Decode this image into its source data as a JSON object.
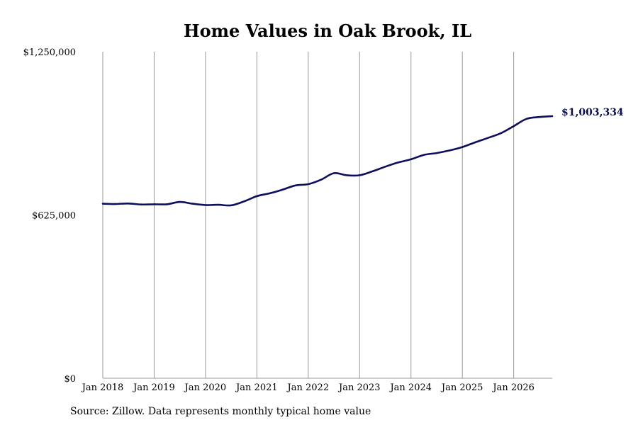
{
  "chart_data": {
    "type": "line",
    "title": "Home Values in Oak Brook, IL",
    "xlabel": "",
    "ylabel": "",
    "ylim": [
      0,
      1250000
    ],
    "xlim": [
      "2018-01",
      "2026-10"
    ],
    "y_ticks": [
      {
        "value": 0,
        "label": "$0"
      },
      {
        "value": 625000,
        "label": "$625,000"
      },
      {
        "value": 1250000,
        "label": "$1,250,000"
      }
    ],
    "x_ticks": [
      {
        "value": "2018-01",
        "label": "Jan 2018"
      },
      {
        "value": "2019-01",
        "label": "Jan 2019"
      },
      {
        "value": "2020-01",
        "label": "Jan 2020"
      },
      {
        "value": "2021-01",
        "label": "Jan 2021"
      },
      {
        "value": "2022-01",
        "label": "Jan 2022"
      },
      {
        "value": "2023-01",
        "label": "Jan 2023"
      },
      {
        "value": "2024-01",
        "label": "Jan 2024"
      },
      {
        "value": "2025-01",
        "label": "Jan 2025"
      },
      {
        "value": "2026-01",
        "label": "Jan 2026"
      }
    ],
    "grid": "vertical",
    "legend": "none",
    "series": [
      {
        "color": "#0d0f5c",
        "points": [
          {
            "x": "2018-01",
            "y": 668000
          },
          {
            "x": "2018-04",
            "y": 667000
          },
          {
            "x": "2018-07",
            "y": 669000
          },
          {
            "x": "2018-10",
            "y": 665000
          },
          {
            "x": "2019-01",
            "y": 666000
          },
          {
            "x": "2019-04",
            "y": 666000
          },
          {
            "x": "2019-07",
            "y": 675000
          },
          {
            "x": "2019-10",
            "y": 668000
          },
          {
            "x": "2020-01",
            "y": 663000
          },
          {
            "x": "2020-04",
            "y": 664000
          },
          {
            "x": "2020-07",
            "y": 662000
          },
          {
            "x": "2020-10",
            "y": 677000
          },
          {
            "x": "2021-01",
            "y": 697000
          },
          {
            "x": "2021-04",
            "y": 708000
          },
          {
            "x": "2021-07",
            "y": 722000
          },
          {
            "x": "2021-10",
            "y": 738000
          },
          {
            "x": "2022-01",
            "y": 743000
          },
          {
            "x": "2022-04",
            "y": 760000
          },
          {
            "x": "2022-07",
            "y": 785000
          },
          {
            "x": "2022-10",
            "y": 777000
          },
          {
            "x": "2023-01",
            "y": 777000
          },
          {
            "x": "2023-04",
            "y": 792000
          },
          {
            "x": "2023-07",
            "y": 810000
          },
          {
            "x": "2023-10",
            "y": 826000
          },
          {
            "x": "2024-01",
            "y": 838000
          },
          {
            "x": "2024-04",
            "y": 855000
          },
          {
            "x": "2024-07",
            "y": 862000
          },
          {
            "x": "2024-10",
            "y": 872000
          },
          {
            "x": "2025-01",
            "y": 885000
          },
          {
            "x": "2025-04",
            "y": 903000
          },
          {
            "x": "2025-07",
            "y": 920000
          },
          {
            "x": "2025-10",
            "y": 938000
          },
          {
            "x": "2026-01",
            "y": 965000
          },
          {
            "x": "2026-04",
            "y": 993000
          },
          {
            "x": "2026-07",
            "y": 1000000
          },
          {
            "x": "2026-10",
            "y": 1003334
          }
        ]
      }
    ],
    "end_label": "$1,003,334"
  },
  "footer": {
    "source": "Source: Zillow. Data represents monthly typical home value"
  }
}
